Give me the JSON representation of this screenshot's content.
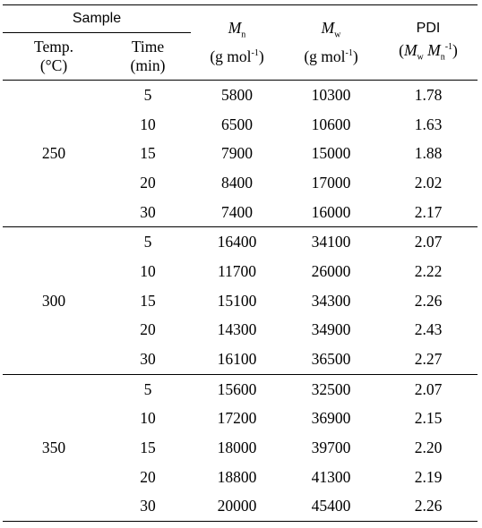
{
  "header": {
    "sample": "Sample",
    "temp_line1": "Temp.",
    "temp_line2": "(°C)",
    "time_line1": "Time",
    "time_line2": "(min)",
    "mn_symbol": "M",
    "mn_sub": "n",
    "mn_unit_pre": "(g mol",
    "mn_unit_sup": "-1",
    "mn_unit_post": ")",
    "mw_symbol": "M",
    "mw_sub": "w",
    "mw_unit_pre": "(g mol",
    "mw_unit_sup": "-1",
    "mw_unit_post": ")",
    "pdi": "PDI",
    "pdi_open": "(",
    "pdi_mw_symbol": "M",
    "pdi_mw_sub": "w",
    "pdi_mn_symbol": "M",
    "pdi_mn_sub": "n",
    "pdi_mn_sup": "-1",
    "pdi_close": ")"
  },
  "groups": [
    {
      "temp": "250",
      "rows": [
        {
          "time": "5",
          "mn": "5800",
          "mw": "10300",
          "pdi": "1.78"
        },
        {
          "time": "10",
          "mn": "6500",
          "mw": "10600",
          "pdi": "1.63"
        },
        {
          "time": "15",
          "mn": "7900",
          "mw": "15000",
          "pdi": "1.88"
        },
        {
          "time": "20",
          "mn": "8400",
          "mw": "17000",
          "pdi": "2.02"
        },
        {
          "time": "30",
          "mn": "7400",
          "mw": "16000",
          "pdi": "2.17"
        }
      ]
    },
    {
      "temp": "300",
      "rows": [
        {
          "time": "5",
          "mn": "16400",
          "mw": "34100",
          "pdi": "2.07"
        },
        {
          "time": "10",
          "mn": "11700",
          "mw": "26000",
          "pdi": "2.22"
        },
        {
          "time": "15",
          "mn": "15100",
          "mw": "34300",
          "pdi": "2.26"
        },
        {
          "time": "20",
          "mn": "14300",
          "mw": "34900",
          "pdi": "2.43"
        },
        {
          "time": "30",
          "mn": "16100",
          "mw": "36500",
          "pdi": "2.27"
        }
      ]
    },
    {
      "temp": "350",
      "rows": [
        {
          "time": "5",
          "mn": "15600",
          "mw": "32500",
          "pdi": "2.07"
        },
        {
          "time": "10",
          "mn": "17200",
          "mw": "36900",
          "pdi": "2.15"
        },
        {
          "time": "15",
          "mn": "18000",
          "mw": "39700",
          "pdi": "2.20"
        },
        {
          "time": "20",
          "mn": "18800",
          "mw": "41300",
          "pdi": "2.19"
        },
        {
          "time": "30",
          "mn": "20000",
          "mw": "45400",
          "pdi": "2.26"
        }
      ]
    }
  ]
}
